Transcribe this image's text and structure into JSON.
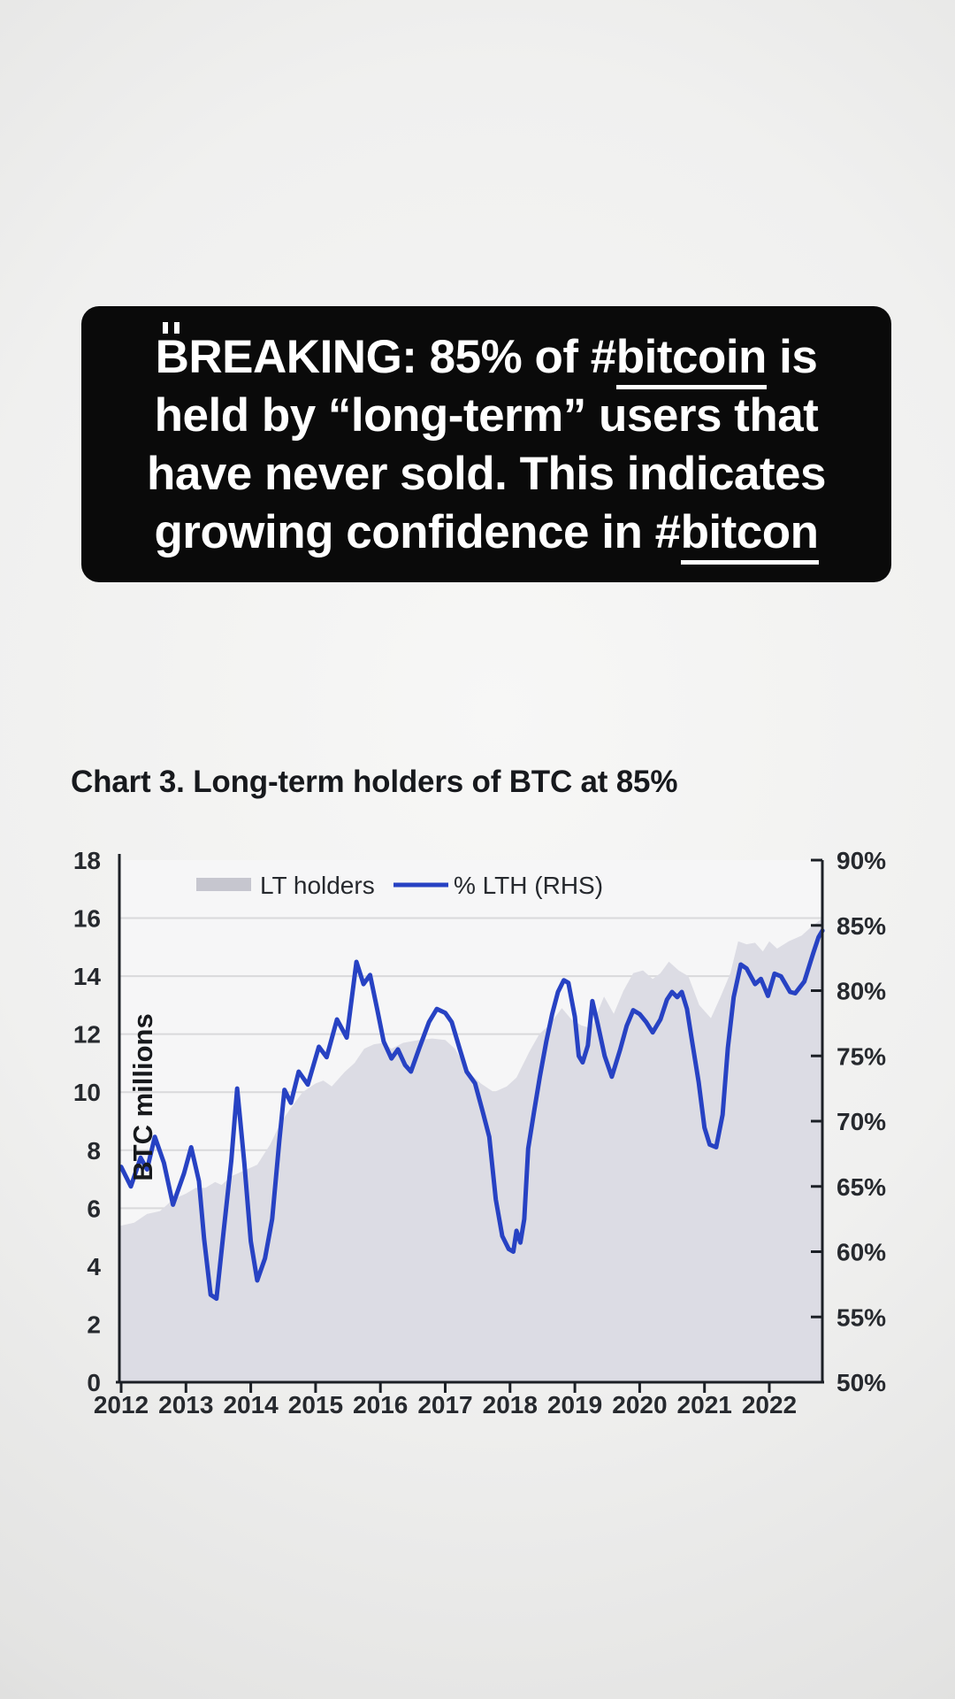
{
  "colors": {
    "headline_bg": "#0a0a0a",
    "headline_text": "#ffffff",
    "accent_blue": "#2742c3",
    "area_fill": "#dcdce4",
    "legend_swatch_gray": "#c6c6cf",
    "grid_line": "#d9d9db",
    "axis_line": "#1c2026",
    "tick_text": "#26292e",
    "plot_bg": "#f6f6f7"
  },
  "headline": {
    "line1": {
      "lead_symbol": "₿",
      "lead": "B",
      "pre": "REAKING: 85% of ",
      "hash": "#",
      "word": "bitcoin",
      "post": " is"
    },
    "line2": "held by “long-term” users that",
    "line3": "have never sold. This indicates",
    "line4": {
      "pre": "growing confidence in ",
      "hash": "#",
      "word": "bitcon"
    }
  },
  "chart": {
    "title": "Chart 3. Long-term holders of BTC at 85%"
  },
  "chart_data": {
    "type": "line",
    "subtype": "area+line dual axis",
    "title": "Chart 3. Long-term holders of BTC at 85%",
    "grid": true,
    "legend_position": "top",
    "x_axis": {
      "ticks": [
        "2012",
        "2013",
        "2014",
        "2015",
        "2016",
        "2017",
        "2018",
        "2019",
        "2020",
        "2021",
        "2022"
      ],
      "range": [
        2012,
        2022.85
      ]
    },
    "left_axis": {
      "label": "BTC millions",
      "ticks": [
        "0",
        "2",
        "4",
        "6",
        "8",
        "10",
        "12",
        "14",
        "16",
        "18"
      ],
      "range": [
        0,
        18
      ]
    },
    "right_axis": {
      "ticks": [
        "50%",
        "55%",
        "60%",
        "65%",
        "70%",
        "75%",
        "80%",
        "85%",
        "90%"
      ],
      "range": [
        50,
        90
      ]
    },
    "series": [
      {
        "name": "LT holders",
        "type": "area",
        "axis": "left",
        "color": "#dcdce4",
        "legend_swatch": "#c6c6cf",
        "points": [
          [
            2012.0,
            5.4
          ],
          [
            2012.2,
            5.5
          ],
          [
            2012.4,
            5.8
          ],
          [
            2012.6,
            5.9
          ],
          [
            2012.8,
            6.3
          ],
          [
            2013.0,
            6.5
          ],
          [
            2013.15,
            6.7
          ],
          [
            2013.3,
            6.7
          ],
          [
            2013.45,
            6.9
          ],
          [
            2013.55,
            6.8
          ],
          [
            2013.7,
            7.1
          ],
          [
            2013.9,
            7.3
          ],
          [
            2014.1,
            7.5
          ],
          [
            2014.3,
            8.2
          ],
          [
            2014.45,
            8.9
          ],
          [
            2014.6,
            9.4
          ],
          [
            2014.8,
            10.0
          ],
          [
            2015.0,
            10.3
          ],
          [
            2015.12,
            10.4
          ],
          [
            2015.25,
            10.2
          ],
          [
            2015.45,
            10.7
          ],
          [
            2015.6,
            11.0
          ],
          [
            2015.75,
            11.5
          ],
          [
            2015.9,
            11.65
          ],
          [
            2016.05,
            11.7
          ],
          [
            2016.17,
            11.5
          ],
          [
            2016.35,
            11.7
          ],
          [
            2016.6,
            11.8
          ],
          [
            2016.8,
            11.85
          ],
          [
            2017.0,
            11.8
          ],
          [
            2017.15,
            11.5
          ],
          [
            2017.35,
            10.7
          ],
          [
            2017.55,
            10.3
          ],
          [
            2017.75,
            10.0
          ],
          [
            2017.95,
            10.2
          ],
          [
            2018.1,
            10.5
          ],
          [
            2018.3,
            11.4
          ],
          [
            2018.45,
            12.0
          ],
          [
            2018.6,
            12.3
          ],
          [
            2018.8,
            12.9
          ],
          [
            2018.95,
            12.5
          ],
          [
            2019.1,
            12.3
          ],
          [
            2019.25,
            12.2
          ],
          [
            2019.45,
            13.3
          ],
          [
            2019.6,
            12.7
          ],
          [
            2019.75,
            13.5
          ],
          [
            2019.9,
            14.1
          ],
          [
            2020.05,
            14.2
          ],
          [
            2020.2,
            13.9
          ],
          [
            2020.32,
            14.1
          ],
          [
            2020.45,
            14.5
          ],
          [
            2020.6,
            14.2
          ],
          [
            2020.75,
            14.0
          ],
          [
            2020.92,
            13.0
          ],
          [
            2021.1,
            12.55
          ],
          [
            2021.25,
            13.3
          ],
          [
            2021.4,
            14.1
          ],
          [
            2021.52,
            15.2
          ],
          [
            2021.65,
            15.1
          ],
          [
            2021.78,
            15.15
          ],
          [
            2021.9,
            14.85
          ],
          [
            2022.0,
            15.2
          ],
          [
            2022.12,
            14.95
          ],
          [
            2022.3,
            15.2
          ],
          [
            2022.5,
            15.4
          ],
          [
            2022.65,
            15.7
          ],
          [
            2022.82,
            16.0
          ]
        ]
      },
      {
        "name": "% LTH (RHS)",
        "type": "line",
        "axis": "right",
        "color": "#2742c3",
        "points": [
          [
            2012.0,
            66.5
          ],
          [
            2012.15,
            65.0
          ],
          [
            2012.3,
            67.2
          ],
          [
            2012.4,
            66.3
          ],
          [
            2012.52,
            68.8
          ],
          [
            2012.66,
            66.8
          ],
          [
            2012.8,
            63.6
          ],
          [
            2012.97,
            66.0
          ],
          [
            2013.08,
            68.0
          ],
          [
            2013.2,
            65.4
          ],
          [
            2013.28,
            61.0
          ],
          [
            2013.38,
            56.7
          ],
          [
            2013.47,
            56.4
          ],
          [
            2013.58,
            61.5
          ],
          [
            2013.7,
            67.0
          ],
          [
            2013.79,
            72.5
          ],
          [
            2013.9,
            66.8
          ],
          [
            2014.0,
            60.8
          ],
          [
            2014.1,
            57.8
          ],
          [
            2014.22,
            59.5
          ],
          [
            2014.33,
            62.5
          ],
          [
            2014.44,
            68.5
          ],
          [
            2014.52,
            72.4
          ],
          [
            2014.62,
            71.4
          ],
          [
            2014.74,
            73.8
          ],
          [
            2014.88,
            72.8
          ],
          [
            2015.05,
            75.7
          ],
          [
            2015.17,
            74.9
          ],
          [
            2015.33,
            77.8
          ],
          [
            2015.48,
            76.4
          ],
          [
            2015.63,
            82.2
          ],
          [
            2015.74,
            80.5
          ],
          [
            2015.84,
            81.2
          ],
          [
            2015.95,
            78.6
          ],
          [
            2016.05,
            76.1
          ],
          [
            2016.17,
            74.8
          ],
          [
            2016.27,
            75.5
          ],
          [
            2016.38,
            74.3
          ],
          [
            2016.47,
            73.8
          ],
          [
            2016.6,
            75.6
          ],
          [
            2016.75,
            77.6
          ],
          [
            2016.87,
            78.6
          ],
          [
            2017.0,
            78.3
          ],
          [
            2017.1,
            77.6
          ],
          [
            2017.22,
            75.6
          ],
          [
            2017.33,
            73.8
          ],
          [
            2017.46,
            72.9
          ],
          [
            2017.58,
            70.7
          ],
          [
            2017.68,
            68.8
          ],
          [
            2017.78,
            64.0
          ],
          [
            2017.88,
            61.2
          ],
          [
            2017.98,
            60.2
          ],
          [
            2018.05,
            60.0
          ],
          [
            2018.1,
            61.6
          ],
          [
            2018.16,
            60.7
          ],
          [
            2018.22,
            62.5
          ],
          [
            2018.28,
            67.9
          ],
          [
            2018.37,
            70.7
          ],
          [
            2018.46,
            73.4
          ],
          [
            2018.56,
            76.1
          ],
          [
            2018.65,
            78.2
          ],
          [
            2018.74,
            79.9
          ],
          [
            2018.83,
            80.8
          ],
          [
            2018.9,
            80.6
          ],
          [
            2019.0,
            78.0
          ],
          [
            2019.06,
            75.0
          ],
          [
            2019.12,
            74.5
          ],
          [
            2019.2,
            75.8
          ],
          [
            2019.27,
            79.2
          ],
          [
            2019.35,
            77.5
          ],
          [
            2019.46,
            75.0
          ],
          [
            2019.57,
            73.4
          ],
          [
            2019.7,
            75.5
          ],
          [
            2019.8,
            77.3
          ],
          [
            2019.9,
            78.5
          ],
          [
            2020.0,
            78.2
          ],
          [
            2020.1,
            77.6
          ],
          [
            2020.2,
            76.8
          ],
          [
            2020.32,
            77.8
          ],
          [
            2020.42,
            79.3
          ],
          [
            2020.5,
            79.9
          ],
          [
            2020.58,
            79.5
          ],
          [
            2020.65,
            79.9
          ],
          [
            2020.73,
            78.6
          ],
          [
            2020.8,
            76.4
          ],
          [
            2020.91,
            73.0
          ],
          [
            2021.0,
            69.5
          ],
          [
            2021.08,
            68.2
          ],
          [
            2021.18,
            68.0
          ],
          [
            2021.28,
            70.5
          ],
          [
            2021.36,
            75.6
          ],
          [
            2021.45,
            79.5
          ],
          [
            2021.56,
            82.0
          ],
          [
            2021.65,
            81.7
          ],
          [
            2021.78,
            80.5
          ],
          [
            2021.87,
            80.9
          ],
          [
            2021.98,
            79.6
          ],
          [
            2022.08,
            81.3
          ],
          [
            2022.18,
            81.1
          ],
          [
            2022.32,
            79.9
          ],
          [
            2022.4,
            79.8
          ],
          [
            2022.54,
            80.7
          ],
          [
            2022.68,
            82.9
          ],
          [
            2022.76,
            84.1
          ],
          [
            2022.82,
            84.6
          ]
        ]
      }
    ]
  }
}
